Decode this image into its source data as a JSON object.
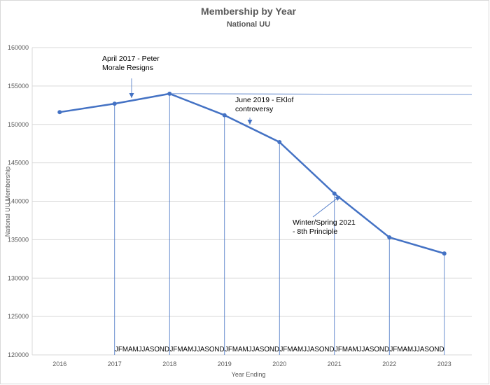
{
  "chart_data": {
    "type": "line",
    "title": "Membership by Year",
    "subtitle": "National UU",
    "xlabel": "Year Ending",
    "ylabel": "National UU Membership",
    "categories": [
      "2016",
      "2017",
      "2018",
      "2019",
      "2020",
      "2021",
      "2022",
      "2023"
    ],
    "series": [
      {
        "values": [
          151600,
          152700,
          154000,
          151200,
          147700,
          141000,
          135300,
          133200
        ]
      }
    ],
    "ylim": [
      120000,
      160000
    ],
    "yticks": [
      "120000",
      "125000",
      "130000",
      "135000",
      "140000",
      "145000",
      "150000",
      "155000",
      "160000"
    ],
    "grid": true,
    "month_labels": [
      "JFMAMJJASOND",
      "JFMAMJJASOND",
      "JFMAMJJASOND",
      "JFMAMJJASOND",
      "JFMAMJJASOND",
      "JFMAMJJASOND"
    ],
    "annotations": [
      {
        "lines": [
          "April 2017 - Peter",
          "Morale Resigns"
        ]
      },
      {
        "lines": [
          "June 2019 - EKlof",
          "controversy"
        ]
      },
      {
        "lines": [
          "Winter/Spring 2021",
          "- 8th Principle"
        ]
      }
    ],
    "colors": {
      "line": "#4472c4",
      "grid": "#d9d9d9",
      "text": "#595959"
    }
  }
}
